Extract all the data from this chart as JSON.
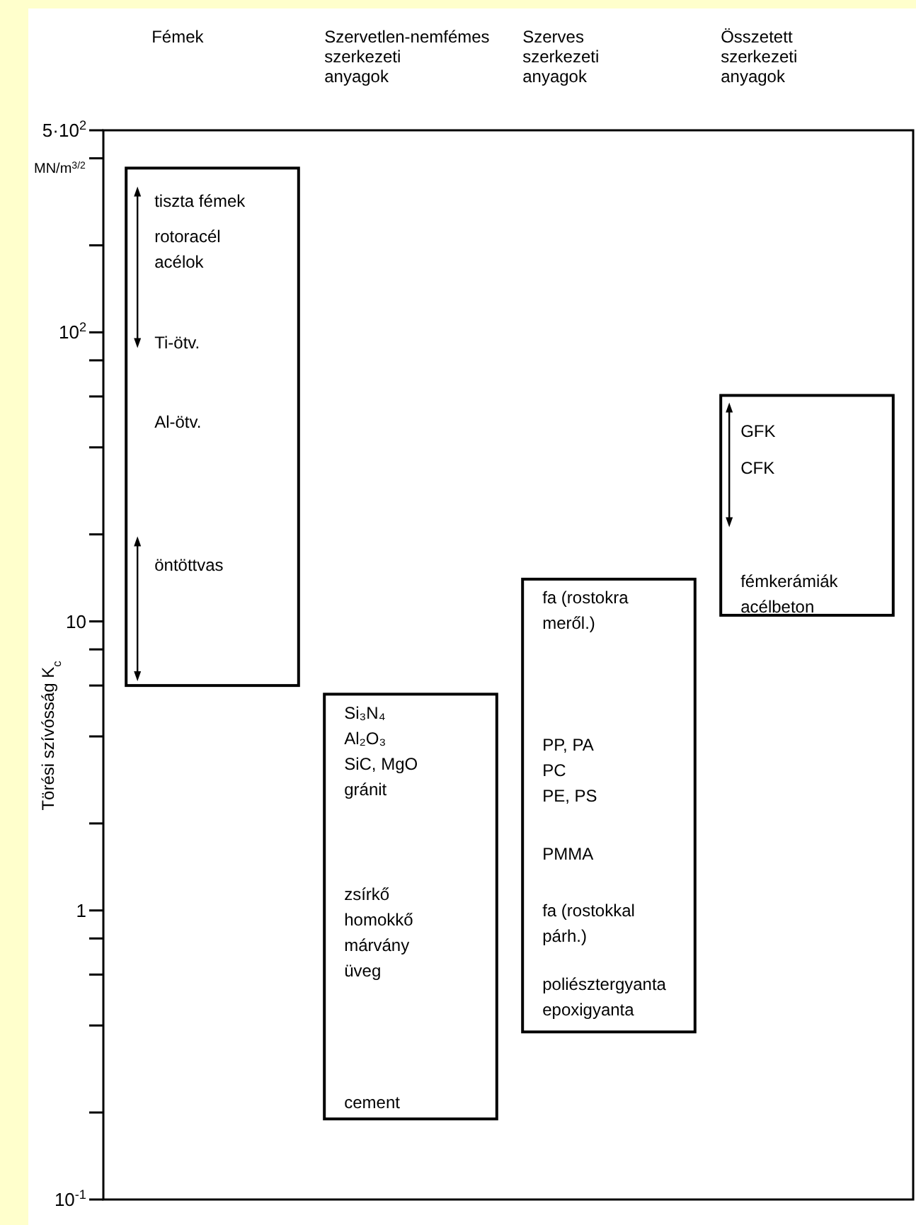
{
  "chart_data": {
    "type": "bar",
    "categories": [
      "Fémek",
      "Szervetlen-nemfémes szerkezeti anyagok",
      "Szerves szerkezeti anyagok",
      "Összetett szerkezeti anyagok"
    ],
    "base": [
      6,
      0.19,
      0.38,
      10.5
    ],
    "values": [
      364,
      5.41,
      13.62,
      50
    ],
    "color": "#000000",
    "log": true,
    "ylim": [
      0.1,
      500
    ],
    "yticks": [
      {
        "value": 0.1,
        "label": "10$^{-1}$"
      },
      {
        "value": 0.2,
        "label": null
      },
      {
        "value": 0.4,
        "label": null
      },
      {
        "value": 0.6,
        "label": null
      },
      {
        "value": 0.8,
        "label": null
      },
      1,
      {
        "value": 2,
        "label": null
      },
      {
        "value": 4,
        "label": null
      },
      {
        "value": 6,
        "label": null
      },
      {
        "value": 8,
        "label": null
      },
      10,
      {
        "value": 20,
        "label": null
      },
      {
        "value": 40,
        "label": null
      },
      {
        "value": 60,
        "label": null
      },
      {
        "value": 80,
        "label": null
      },
      {
        "value": 100,
        "label": "10$^{2}$"
      },
      {
        "value": 200,
        "label": null
      },
      {
        "value": 400,
        "label": null
      },
      {
        "value": 500,
        "label": "5·10$^{2}$"
      }
    ],
    "ylabel": "Törési szívósság  K$_{c}$",
    "annotations": [
      "MN/m$^{3/2}$",
      "tiszta fémek",
      "rotoracél\nacélok",
      "Ti-ötv.",
      "Al-ötv.",
      "öntöttvas",
      "Si₃N₄\nAl₂O₃\nSiC, MgO\ngránit",
      "zsírkő\nhomokkő\nmárvány\nüveg",
      "cement",
      "fa (rostokra\nmeről.)",
      "PP, PA\nPC\nPE, PS",
      "PMMA",
      "fa (rostokkal\npárh.)",
      "poliésztergyanta\nepoxigyanta",
      "GFK",
      "CFK",
      "fémkerámiák\nacélbeton"
    ]
  }
}
